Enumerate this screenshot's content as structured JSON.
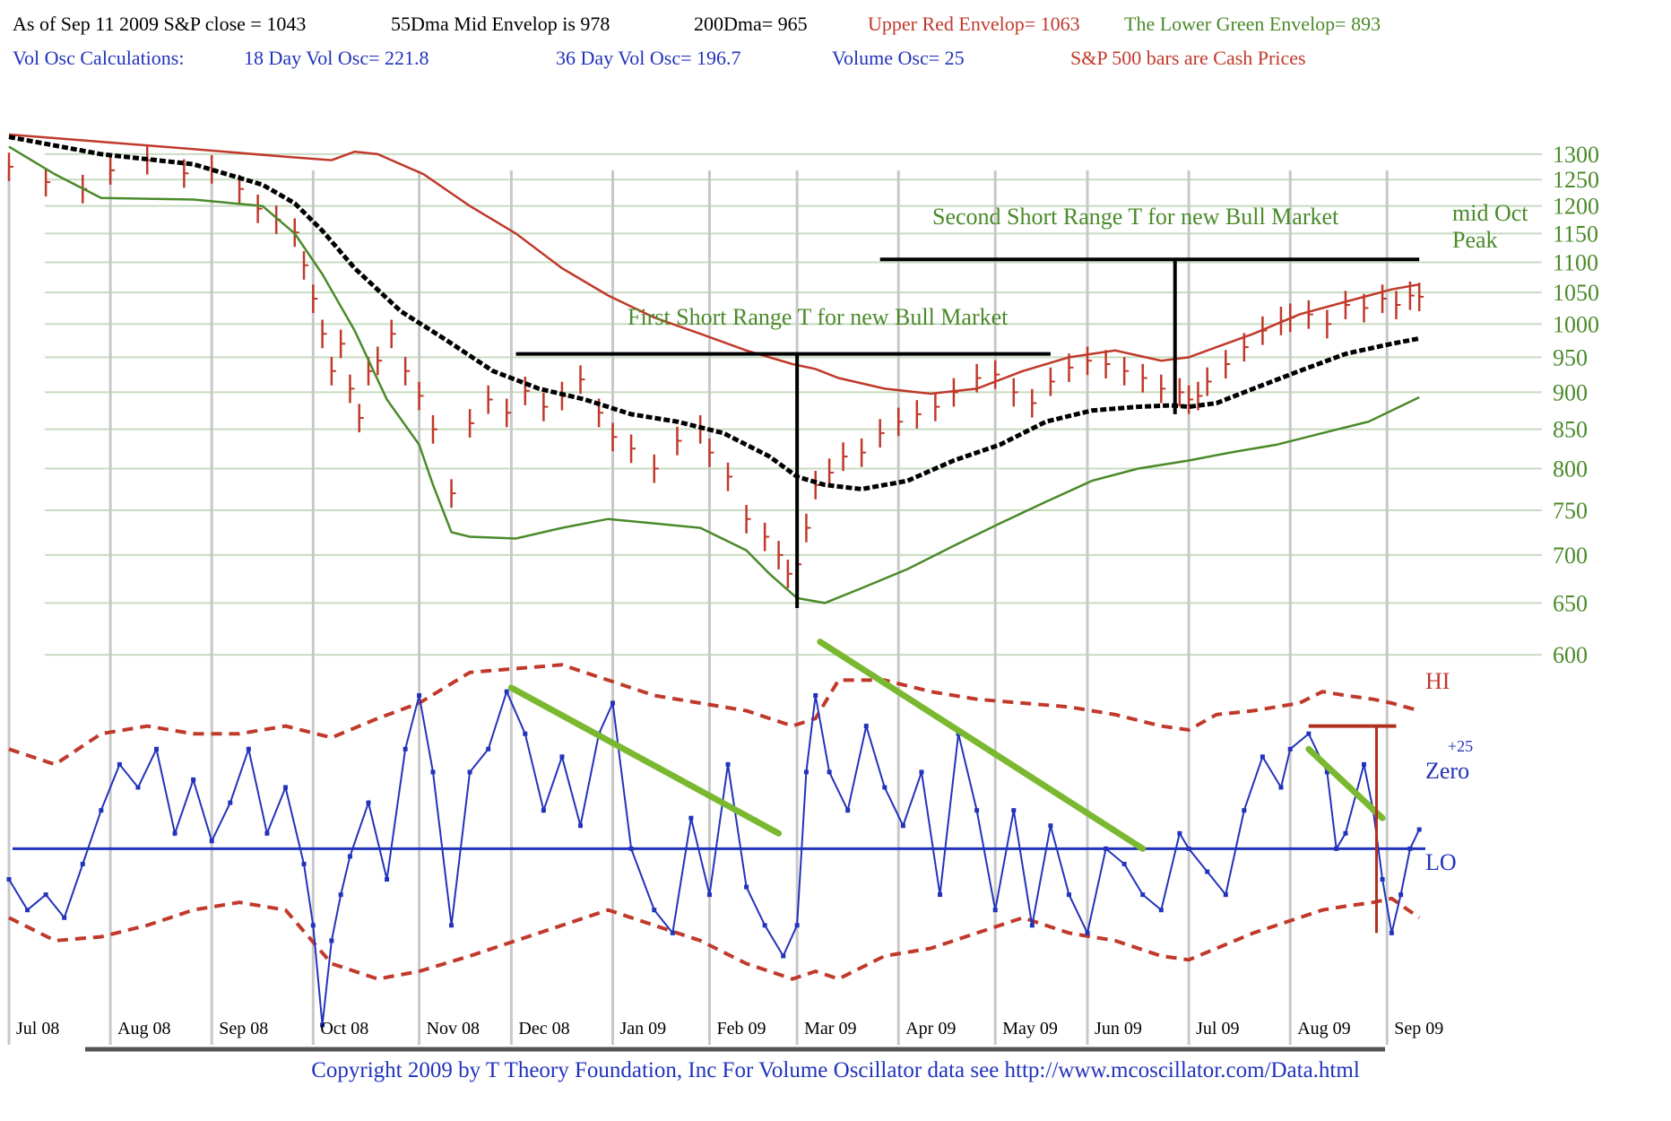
{
  "header": {
    "line1": [
      {
        "text": "As of Sep 11  2009  S&P close = 1043",
        "color": "black"
      },
      {
        "text": "55Dma Mid Envelop is  978",
        "color": "black"
      },
      {
        "text": "200Dma=  965",
        "color": "black"
      },
      {
        "text": "Upper Red Envelop= 1063",
        "color": "red"
      },
      {
        "text": "The Lower Green Envelop=  893",
        "color": "green"
      }
    ],
    "line2": [
      {
        "text": "Vol Osc Calculations:",
        "color": "blue"
      },
      {
        "text": "18 Day Vol Osc=  221.8",
        "color": "blue"
      },
      {
        "text": "36 Day Vol Osc=  196.7",
        "color": "blue"
      },
      {
        "text": "Volume Osc=  25",
        "color": "blue"
      },
      {
        "text": "S&P 500 bars are Cash Prices",
        "color": "red"
      }
    ]
  },
  "footer": "Copyright 2009 by T Theory Foundation, Inc  For Volume Oscillator data see http://www.mcoscillator.com/Data.html",
  "colors": {
    "grid": "#c8dcc0",
    "price_bars": "#c0392b",
    "upper_envelope": "#c0392b",
    "lower_envelope": "#4a8a2a",
    "ma55": "#000000",
    "oscillator": "#2233bb",
    "osc_bands": "#c0392b",
    "trendlines": "#7ab830",
    "t_structure": "#000000",
    "month_lines": "#c8c8c8"
  },
  "chart_data": [
    {
      "type": "line",
      "title": "S&P 500 with envelopes",
      "yscale": "log",
      "ylim": [
        560,
        1340
      ],
      "price_ticks": [
        1300,
        1250,
        1200,
        1150,
        1100,
        1050,
        1000,
        950,
        900,
        850,
        800,
        750,
        700,
        650,
        600
      ],
      "x_months": [
        "Jul 08",
        "Aug 08",
        "Sep 08",
        "Oct 08",
        "Nov 08",
        "Dec 08",
        "Jan 09",
        "Feb 09",
        "Mar 09",
        "Apr 09",
        "May 09",
        "Jun 09",
        "Jul 09",
        "Aug 09",
        "Sep 09"
      ],
      "x_month_start_day": [
        0,
        22,
        44,
        66,
        89,
        109,
        131,
        152,
        171,
        193,
        214,
        234,
        256,
        278,
        299
      ],
      "x_range_days": [
        0,
        306
      ],
      "series": [
        {
          "kind": "ohlc_close",
          "x": [
            0,
            8,
            16,
            22,
            30,
            38,
            44,
            50,
            54,
            58,
            62,
            64,
            66,
            68,
            70,
            72,
            74,
            76,
            78,
            80,
            83,
            86,
            89,
            92,
            96,
            100,
            104,
            108,
            112,
            116,
            120,
            124,
            128,
            131,
            135,
            140,
            145,
            150,
            152,
            156,
            160,
            164,
            167,
            169,
            171,
            173,
            175,
            178,
            181,
            185,
            189,
            193,
            197,
            201,
            205,
            210,
            214,
            218,
            222,
            226,
            230,
            234,
            238,
            242,
            246,
            250,
            254,
            256,
            258,
            260,
            264,
            268,
            272,
            276,
            278,
            282,
            286,
            290,
            294,
            298,
            301,
            304,
            306
          ],
          "y": [
            1275,
            1245,
            1232,
            1268,
            1288,
            1262,
            1270,
            1232,
            1195,
            1175,
            1152,
            1095,
            1040,
            985,
            930,
            970,
            905,
            865,
            930,
            945,
            985,
            930,
            895,
            850,
            770,
            858,
            890,
            872,
            902,
            880,
            895,
            918,
            872,
            840,
            825,
            800,
            835,
            850,
            820,
            790,
            740,
            720,
            700,
            680,
            690,
            730,
            780,
            795,
            815,
            820,
            845,
            860,
            870,
            880,
            900,
            920,
            925,
            900,
            885,
            915,
            935,
            945,
            940,
            930,
            920,
            905,
            900,
            890,
            895,
            915,
            940,
            965,
            990,
            1005,
            1010,
            1015,
            1000,
            1030,
            1025,
            1040,
            1030,
            1045,
            1043
          ]
        },
        {
          "name": "Upper Red Envelop",
          "x": [
            0,
            20,
            40,
            60,
            70,
            75,
            80,
            90,
            100,
            110,
            120,
            130,
            140,
            150,
            160,
            170,
            175,
            180,
            190,
            200,
            210,
            220,
            230,
            240,
            250,
            256,
            262,
            270,
            280,
            290,
            300,
            306
          ],
          "y": [
            1340,
            1325,
            1310,
            1295,
            1288,
            1305,
            1300,
            1260,
            1200,
            1150,
            1090,
            1045,
            1010,
            985,
            960,
            940,
            933,
            920,
            905,
            898,
            905,
            930,
            950,
            960,
            945,
            950,
            965,
            985,
            1015,
            1035,
            1055,
            1063
          ]
        },
        {
          "name": "55Dma Mid Envelop",
          "x": [
            0,
            20,
            40,
            55,
            62,
            68,
            75,
            85,
            95,
            105,
            115,
            125,
            135,
            145,
            155,
            165,
            171,
            177,
            185,
            195,
            205,
            215,
            225,
            235,
            245,
            252,
            256,
            262,
            270,
            280,
            290,
            300,
            306
          ],
          "y": [
            1335,
            1300,
            1280,
            1240,
            1205,
            1155,
            1090,
            1020,
            975,
            930,
            905,
            890,
            870,
            860,
            845,
            815,
            790,
            780,
            775,
            785,
            810,
            830,
            860,
            875,
            880,
            882,
            880,
            885,
            905,
            930,
            955,
            970,
            978
          ]
        },
        {
          "name": "The Lower Green Envelop",
          "x": [
            0,
            10,
            20,
            40,
            55,
            62,
            68,
            75,
            82,
            89,
            92,
            96,
            100,
            110,
            120,
            130,
            140,
            150,
            160,
            165,
            171,
            177,
            185,
            195,
            205,
            215,
            225,
            235,
            245,
            256,
            265,
            275,
            285,
            295,
            306
          ],
          "y": [
            1315,
            1260,
            1215,
            1212,
            1200,
            1150,
            1080,
            990,
            890,
            830,
            780,
            725,
            720,
            718,
            730,
            740,
            735,
            730,
            705,
            680,
            655,
            650,
            665,
            685,
            710,
            735,
            760,
            785,
            800,
            810,
            820,
            830,
            845,
            860,
            893
          ]
        }
      ],
      "annotations": [
        {
          "text": "First Short Range T for new Bull Market",
          "t_left_day": 110,
          "t_center_day": 171,
          "t_right_day": 226,
          "t_top_price": 955,
          "t_bottom_price": 645
        },
        {
          "text": "Second Short Range T for new Bull Market",
          "t_left_day": 189,
          "t_center_day": 253,
          "t_right_day": 306,
          "t_top_price": 1105,
          "t_bottom_price": 870
        },
        {
          "text": "mid Oct",
          "line": 1
        },
        {
          "text": "Peak",
          "line": 2
        }
      ]
    },
    {
      "type": "line",
      "title": "Volume Oscillator",
      "ylim": [
        -250,
        300
      ],
      "zero_label": "Zero",
      "hi_label": "HI",
      "lo_label": "LO",
      "last_value_label": "+25",
      "series": [
        {
          "name": "Volume Osc",
          "x": [
            0,
            4,
            8,
            12,
            16,
            20,
            24,
            28,
            32,
            36,
            40,
            44,
            48,
            52,
            56,
            60,
            64,
            66,
            68,
            70,
            72,
            74,
            78,
            82,
            86,
            89,
            92,
            96,
            100,
            104,
            108,
            112,
            116,
            120,
            124,
            128,
            131,
            135,
            140,
            144,
            148,
            152,
            156,
            160,
            164,
            168,
            171,
            173,
            175,
            178,
            182,
            186,
            190,
            194,
            198,
            202,
            206,
            210,
            214,
            218,
            222,
            226,
            230,
            234,
            238,
            242,
            246,
            250,
            254,
            256,
            260,
            264,
            268,
            272,
            276,
            278,
            282,
            286,
            288,
            290,
            294,
            296,
            298,
            300,
            302,
            304,
            306
          ],
          "y": [
            -40,
            -80,
            -60,
            -90,
            -20,
            50,
            110,
            80,
            130,
            20,
            90,
            10,
            60,
            130,
            20,
            80,
            -20,
            -100,
            -230,
            -120,
            -60,
            -10,
            60,
            -40,
            130,
            200,
            100,
            -100,
            100,
            130,
            205,
            150,
            50,
            120,
            30,
            150,
            190,
            0,
            -80,
            -110,
            40,
            -60,
            110,
            -50,
            -100,
            -140,
            -100,
            100,
            200,
            100,
            50,
            160,
            80,
            30,
            100,
            -60,
            150,
            50,
            -80,
            50,
            -100,
            30,
            -60,
            -110,
            0,
            -20,
            -60,
            -80,
            20,
            0,
            -30,
            -60,
            50,
            120,
            80,
            130,
            150,
            100,
            0,
            20,
            110,
            50,
            -40,
            -110,
            -60,
            0,
            25
          ]
        },
        {
          "name": "HI band",
          "x": [
            0,
            10,
            20,
            30,
            40,
            50,
            60,
            70,
            80,
            89,
            100,
            110,
            120,
            130,
            140,
            150,
            160,
            170,
            175,
            180,
            190,
            200,
            210,
            220,
            230,
            240,
            250,
            256,
            262,
            270,
            280,
            285,
            290,
            296,
            300,
            306
          ],
          "y": [
            130,
            110,
            150,
            160,
            150,
            150,
            160,
            145,
            170,
            190,
            230,
            235,
            240,
            220,
            200,
            190,
            180,
            160,
            170,
            220,
            220,
            205,
            195,
            190,
            185,
            175,
            160,
            155,
            175,
            180,
            190,
            205,
            200,
            195,
            190,
            180
          ]
        },
        {
          "name": "LO band",
          "x": [
            0,
            10,
            20,
            30,
            40,
            50,
            60,
            70,
            80,
            89,
            100,
            110,
            120,
            130,
            140,
            150,
            160,
            170,
            175,
            180,
            190,
            200,
            210,
            220,
            230,
            240,
            250,
            256,
            262,
            270,
            280,
            285,
            290,
            296,
            300,
            306
          ],
          "y": [
            -90,
            -120,
            -115,
            -100,
            -80,
            -70,
            -80,
            -150,
            -170,
            -160,
            -140,
            -120,
            -100,
            -80,
            -100,
            -120,
            -150,
            -170,
            -160,
            -170,
            -140,
            -130,
            -110,
            -90,
            -110,
            -120,
            -140,
            -145,
            -130,
            -110,
            -90,
            -80,
            -75,
            -70,
            -65,
            -90
          ]
        }
      ],
      "trendlines": [
        {
          "x": [
            109,
            167
          ],
          "y": [
            210,
            20
          ]
        },
        {
          "x": [
            176,
            246
          ],
          "y": [
            270,
            0
          ]
        },
        {
          "x": [
            282,
            298
          ],
          "y": [
            130,
            40
          ]
        }
      ],
      "hi_marker": {
        "x": [
          282,
          301
        ],
        "y": [
          160,
          160
        ],
        "drop_to": -110
      }
    }
  ]
}
